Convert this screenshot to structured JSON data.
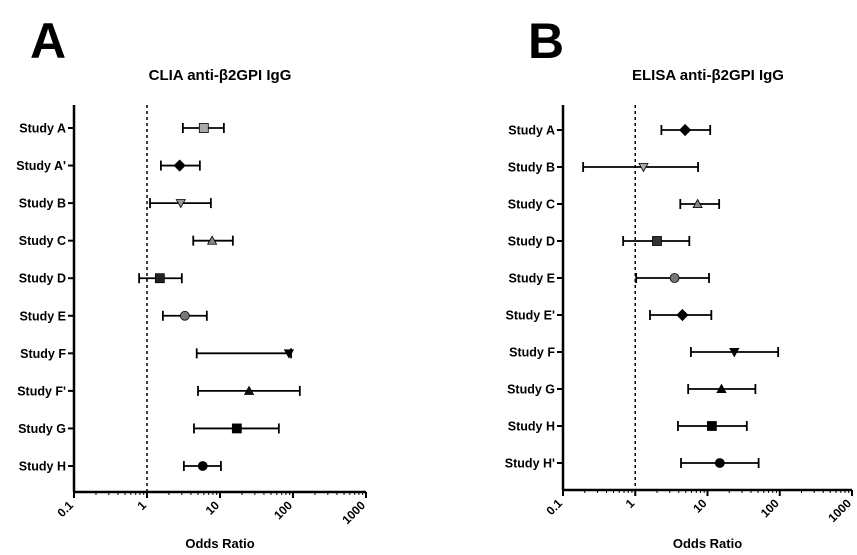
{
  "chart_data": [
    {
      "type": "forest",
      "panel": "A",
      "title": "CLIA anti-β2GPI IgG",
      "x_label": "Odds Ratio",
      "log_scale": true,
      "xlim": [
        0.1,
        1000
      ],
      "xticks": [
        0.1,
        1,
        10,
        100,
        1000
      ],
      "reference_line": 1,
      "categories": [
        "Study A",
        "Study A'",
        "Study B",
        "Study C",
        "Study D",
        "Study E",
        "Study F",
        "Study F'",
        "Study G",
        "Study H"
      ],
      "values": [
        6.0,
        2.8,
        2.9,
        7.8,
        1.5,
        3.3,
        88,
        25,
        17,
        5.8
      ],
      "ci_low": [
        3.1,
        1.55,
        1.1,
        4.3,
        0.78,
        1.65,
        4.8,
        5,
        4.4,
        3.2
      ],
      "ci_high": [
        11.3,
        5.3,
        7.5,
        15,
        3.0,
        6.6,
        94,
        124,
        64,
        10.3
      ],
      "markers": [
        "square",
        "diamond",
        "triangle-down",
        "triangle",
        "square",
        "circle",
        "triangle-down",
        "triangle",
        "square",
        "circle"
      ],
      "colors": [
        "#aaaaaa",
        "#000000",
        "#999999",
        "#888888",
        "#222222",
        "#777777",
        "#000000",
        "#111111",
        "#000000",
        "#000000"
      ]
    },
    {
      "type": "forest",
      "panel": "B",
      "title": "ELISA anti-β2GPI IgG",
      "x_label": "Odds Ratio",
      "log_scale": true,
      "xlim": [
        0.1,
        1000
      ],
      "xticks": [
        0.1,
        1,
        10,
        100,
        1000
      ],
      "reference_line": 1,
      "categories": [
        "Study A",
        "Study B",
        "Study C",
        "Study D",
        "Study E",
        "Study E'",
        "Study F",
        "Study G",
        "Study H",
        "Study H'"
      ],
      "values": [
        4.9,
        1.3,
        7.3,
        2.0,
        3.5,
        4.5,
        23.5,
        15.6,
        11.5,
        14.8
      ],
      "ci_low": [
        2.3,
        0.19,
        4.2,
        0.68,
        1.03,
        1.6,
        5.9,
        5.4,
        3.9,
        4.3
      ],
      "ci_high": [
        10.9,
        7.4,
        14.5,
        5.6,
        10.5,
        11.3,
        95,
        46,
        35,
        51
      ],
      "markers": [
        "diamond",
        "triangle-down",
        "triangle",
        "square",
        "circle",
        "diamond",
        "triangle-down",
        "triangle",
        "square",
        "circle"
      ],
      "colors": [
        "#000000",
        "#aaaaaa",
        "#888888",
        "#333333",
        "#777777",
        "#000000",
        "#000000",
        "#000000",
        "#000000",
        "#000000"
      ]
    }
  ]
}
